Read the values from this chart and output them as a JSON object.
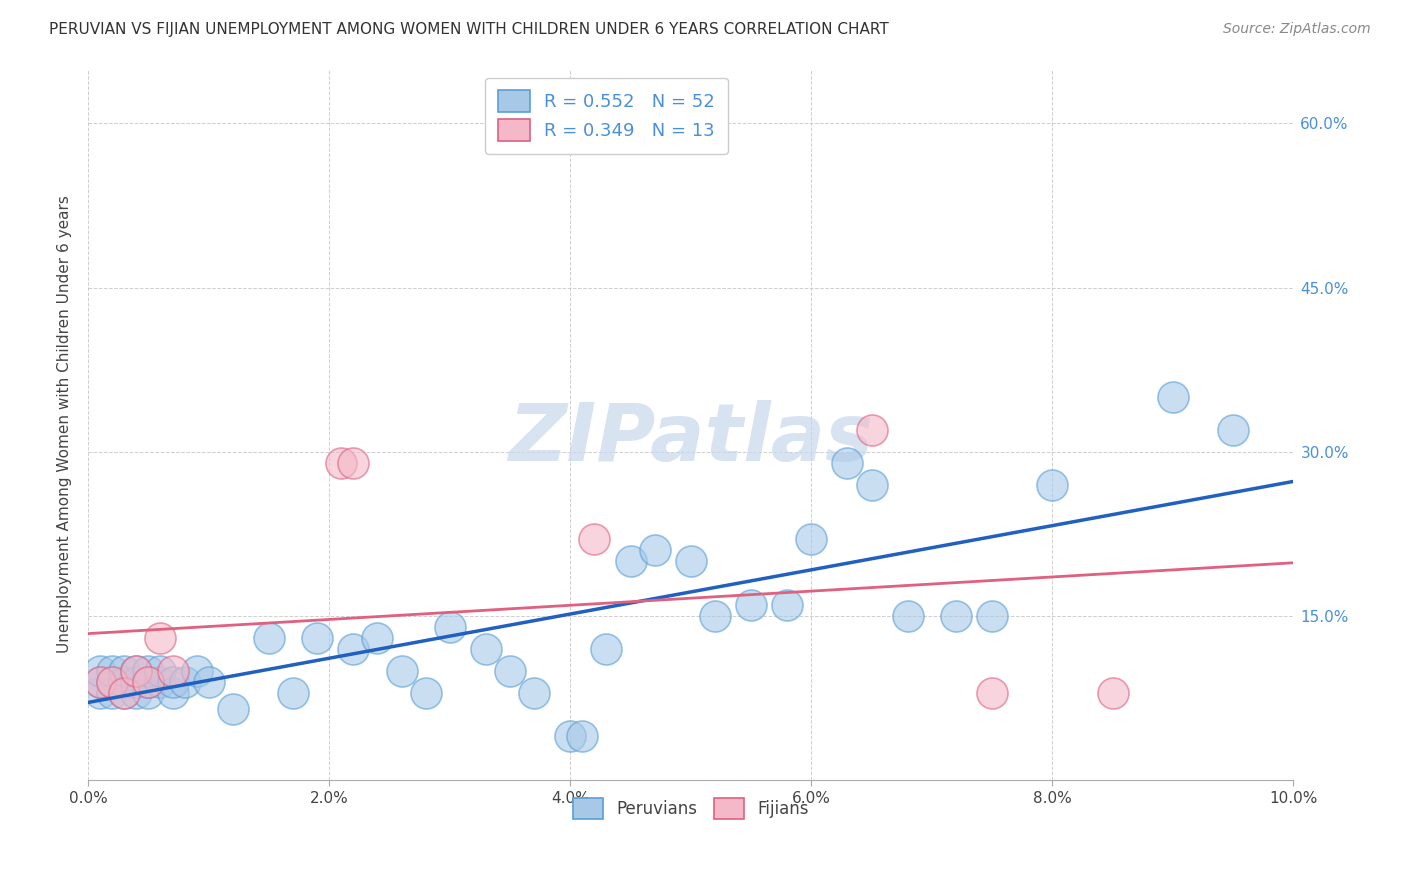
{
  "title": "PERUVIAN VS FIJIAN UNEMPLOYMENT AMONG WOMEN WITH CHILDREN UNDER 6 YEARS CORRELATION CHART",
  "source": "Source: ZipAtlas.com",
  "ylabel": "Unemployment Among Women with Children Under 6 years",
  "xlim": [
    0.0,
    0.1
  ],
  "ylim": [
    0.0,
    0.65
  ],
  "xticks": [
    0.0,
    0.02,
    0.04,
    0.06,
    0.08,
    0.1
  ],
  "yticks": [
    0.0,
    0.15,
    0.3,
    0.45,
    0.6
  ],
  "xtick_labels": [
    "0.0%",
    "2.0%",
    "4.0%",
    "6.0%",
    "8.0%",
    "10.0%"
  ],
  "ytick_labels_right": [
    "",
    "15.0%",
    "30.0%",
    "45.0%",
    "60.0%"
  ],
  "blue_color": "#a8c8e8",
  "pink_color": "#f4b8c8",
  "blue_edge_color": "#5a9fd4",
  "pink_edge_color": "#e06080",
  "blue_line_color": "#2060c0",
  "pink_line_color": "#e06080",
  "legend_R1": "R = 0.552",
  "legend_N1": "N = 52",
  "legend_R2": "R = 0.349",
  "legend_N2": "N = 13",
  "peruvian_x": [
    0.001,
    0.001,
    0.001,
    0.002,
    0.002,
    0.002,
    0.003,
    0.003,
    0.003,
    0.004,
    0.004,
    0.004,
    0.005,
    0.005,
    0.005,
    0.006,
    0.006,
    0.007,
    0.007,
    0.008,
    0.009,
    0.01,
    0.012,
    0.015,
    0.017,
    0.019,
    0.022,
    0.024,
    0.026,
    0.028,
    0.03,
    0.033,
    0.035,
    0.037,
    0.04,
    0.041,
    0.043,
    0.045,
    0.047,
    0.05,
    0.052,
    0.055,
    0.058,
    0.06,
    0.063,
    0.065,
    0.068,
    0.072,
    0.075,
    0.08,
    0.09,
    0.095
  ],
  "peruvian_y": [
    0.08,
    0.09,
    0.1,
    0.08,
    0.09,
    0.1,
    0.08,
    0.09,
    0.1,
    0.08,
    0.09,
    0.1,
    0.08,
    0.09,
    0.1,
    0.09,
    0.1,
    0.08,
    0.09,
    0.09,
    0.1,
    0.09,
    0.065,
    0.13,
    0.08,
    0.13,
    0.12,
    0.13,
    0.1,
    0.08,
    0.14,
    0.12,
    0.1,
    0.08,
    0.04,
    0.04,
    0.12,
    0.2,
    0.21,
    0.2,
    0.15,
    0.16,
    0.16,
    0.22,
    0.29,
    0.27,
    0.15,
    0.15,
    0.15,
    0.27,
    0.35,
    0.32
  ],
  "fijian_x": [
    0.001,
    0.002,
    0.003,
    0.004,
    0.005,
    0.006,
    0.007,
    0.021,
    0.022,
    0.042,
    0.065,
    0.075,
    0.085
  ],
  "fijian_y": [
    0.09,
    0.09,
    0.08,
    0.1,
    0.09,
    0.13,
    0.1,
    0.29,
    0.29,
    0.22,
    0.32,
    0.08,
    0.08
  ],
  "watermark_text": "ZIPatlas",
  "watermark_color": "#c8d8ec",
  "background_color": "#ffffff",
  "grid_color": "#bbbbbb",
  "title_color": "#333333",
  "source_color": "#888888",
  "label_color": "#444444",
  "right_tick_color": "#4a90d9",
  "legend_text_color": "#4a90d9"
}
